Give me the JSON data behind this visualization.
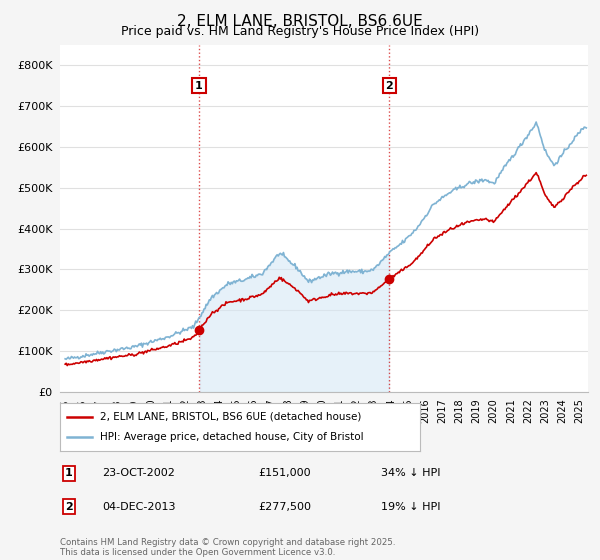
{
  "title": "2, ELM LANE, BRISTOL, BS6 6UE",
  "subtitle": "Price paid vs. HM Land Registry's House Price Index (HPI)",
  "ylim": [
    0,
    850000
  ],
  "yticks": [
    0,
    100000,
    200000,
    300000,
    400000,
    500000,
    600000,
    700000,
    800000
  ],
  "ytick_labels": [
    "£0",
    "£100K",
    "£200K",
    "£300K",
    "£400K",
    "£500K",
    "£600K",
    "£700K",
    "£800K"
  ],
  "hpi_color": "#7fb3d3",
  "hpi_fill_color": "#d6e8f5",
  "price_color": "#cc0000",
  "marker_color": "#cc0000",
  "sale1_x": 2002.81,
  "sale1_y": 151000,
  "sale2_x": 2013.92,
  "sale2_y": 277500,
  "vline1_x": 2002.81,
  "vline2_x": 2013.92,
  "background_color": "#f5f5f5",
  "plot_bg": "#ffffff",
  "grid_color": "#e0e0e0",
  "title_fontsize": 11,
  "subtitle_fontsize": 9,
  "legend_label_red": "2, ELM LANE, BRISTOL, BS6 6UE (detached house)",
  "legend_label_blue": "HPI: Average price, detached house, City of Bristol",
  "footer_line1": "Contains HM Land Registry data © Crown copyright and database right 2025.",
  "footer_line2": "This data is licensed under the Open Government Licence v3.0.",
  "table_row1": [
    "1",
    "23-OCT-2002",
    "£151,000",
    "34% ↓ HPI"
  ],
  "table_row2": [
    "2",
    "04-DEC-2013",
    "£277,500",
    "19% ↓ HPI"
  ],
  "xlim_left": 1994.7,
  "xlim_right": 2025.5,
  "xstart": 1995,
  "xend": 2025
}
